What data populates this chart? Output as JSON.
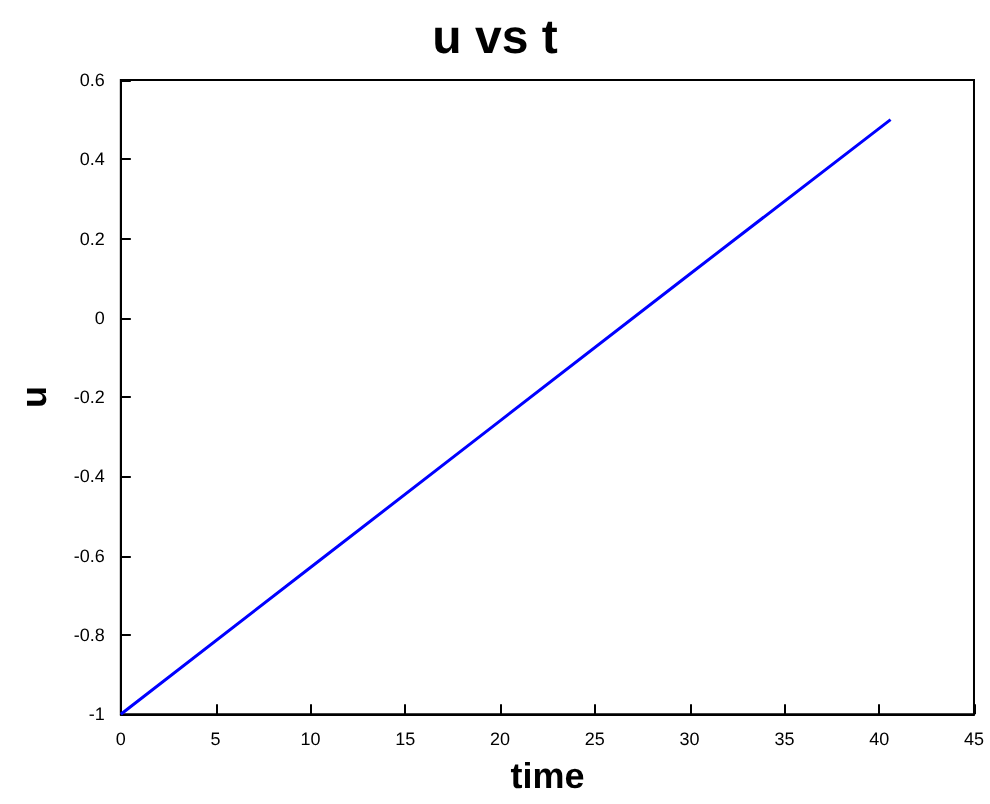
{
  "chart_data": {
    "type": "line",
    "title": "u vs t",
    "xlabel": "time",
    "ylabel": "u",
    "x": [
      0,
      10,
      20,
      30,
      40.6
    ],
    "series": [
      {
        "color": "#0000ff",
        "values": [
          -1,
          -0.63,
          -0.26,
          0.11,
          0.5
        ]
      }
    ],
    "xlim": [
      0,
      45
    ],
    "xticks": [
      0,
      5,
      10,
      15,
      20,
      25,
      30,
      35,
      40,
      45
    ],
    "ylim": [
      -1,
      0.6
    ],
    "yticks": [
      -1,
      -0.8,
      -0.6,
      -0.4,
      -0.2,
      0,
      0.2,
      0.4,
      0.6
    ],
    "grid": false,
    "marker": "none",
    "line_style": "solid"
  }
}
